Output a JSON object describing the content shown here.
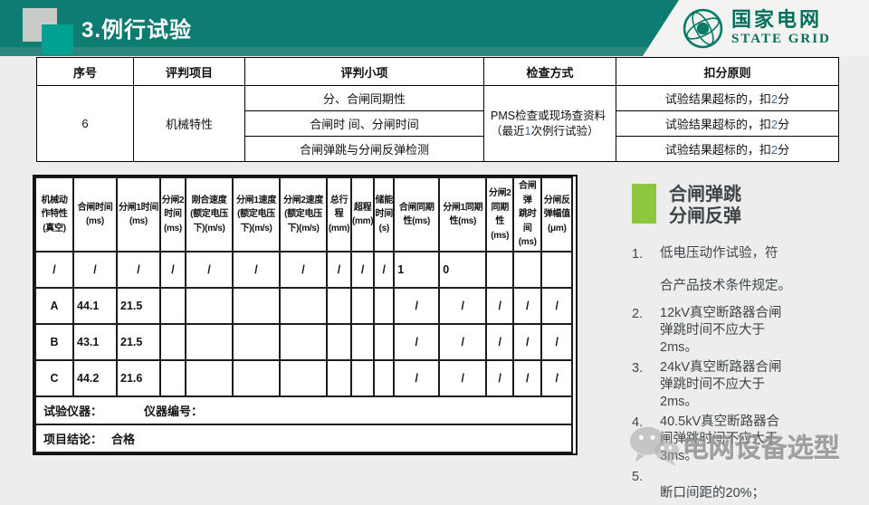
{
  "header": {
    "title": "3.例行试验",
    "logo": {
      "cn": "国家电网",
      "en": "STATE GRID"
    }
  },
  "criteria_table": {
    "headers": [
      "序号",
      "评判项目",
      "评判小项",
      "检查方式",
      "扣分原则"
    ],
    "serial": "6",
    "project": "机械特性",
    "sub_items": [
      "分、合闸同期性",
      "合闸时 间、分闸时间",
      "合闸弹跳与分闸反弹检测"
    ],
    "check_method": "PMS检查或现场查资料\n（最近1次例行试验）",
    "deductions": [
      "试验结果超标的，扣2分",
      "试验结果超标的，扣2分",
      "试验结果超标的，扣2分"
    ]
  },
  "record_table": {
    "columns": [
      "机械动\n作特性\n(真空)",
      "合闸时间\n(ms)",
      "分闸1时间\n(ms)",
      "分闸2\n时间\n(ms)",
      "刚合速度\n(额定电压\n下)(m/s)",
      "分闸1速度\n(额定电压\n下)(m/s)",
      "分闸2速度\n(额定电压\n下)(m/s)",
      "总行\n程\n(mm)",
      "超程\n(mm)",
      "储能\n时间\n(s)",
      "合闸同期\n性(ms)",
      "分闸1同期\n性(ms)",
      "分闸2\n同期性\n(ms)",
      "合闸弹\n跳时间\n(ms)",
      "分闸反\n弹幅值\n(μm)"
    ],
    "rows": [
      [
        "/",
        "/",
        "/",
        "/",
        "/",
        "/",
        "/",
        "/",
        "/",
        "/",
        "1",
        "0",
        "",
        "",
        ""
      ],
      [
        "A",
        "44.1",
        "21.5",
        "",
        "",
        "",
        "",
        "",
        "",
        "",
        "/",
        "/",
        "/",
        "/",
        "/"
      ],
      [
        "B",
        "43.1",
        "21.5",
        "",
        "",
        "",
        "",
        "",
        "",
        "",
        "/",
        "/",
        "/",
        "/",
        "/"
      ],
      [
        "C",
        "44.2",
        "21.6",
        "",
        "",
        "",
        "",
        "",
        "",
        "",
        "/",
        "/",
        "/",
        "/",
        "/"
      ]
    ],
    "instrument_label": "试验仪器：",
    "instrument_no_label": "仪器编号：",
    "conclusion_label": "项目结论：",
    "conclusion_value": "合格"
  },
  "notes": {
    "heading_line1": "合闸弹跳",
    "heading_line2": "分闸反弹",
    "items": [
      {
        "num": "1.",
        "spaced": true,
        "lines": [
          "低电压动作试验，符",
          "合产品技术条件规定。"
        ]
      },
      {
        "num": "2.",
        "spaced": false,
        "lines": [
          "12kV真空断路器合闸",
          "弹跳时间不应大于",
          "2ms。"
        ]
      },
      {
        "num": "3.",
        "spaced": false,
        "lines": [
          "24kV真空断路器合闸",
          "弹跳时间不应大于",
          "2ms。"
        ]
      },
      {
        "num": "4.",
        "spaced": false,
        "lines": [
          "40.5kV真空断路器合",
          "闸弹跳时间不应大于",
          "3ms。"
        ]
      },
      {
        "num": "5.",
        "spaced": false,
        "lines": [
          "",
          "断口间距的20%；"
        ]
      }
    ]
  },
  "watermark": {
    "text": "电网设备选型",
    "icon": "wechat-icon"
  },
  "colors": {
    "header_teal": "#0e7c70",
    "header_band": "#2e877d",
    "accent_teal_square": "#00a192",
    "logo_green": "#00705c",
    "note_green": "#8dc63f",
    "note_text": "#3e4549",
    "digit_blue": "#3a66ad",
    "page_bg": "#ededed"
  }
}
